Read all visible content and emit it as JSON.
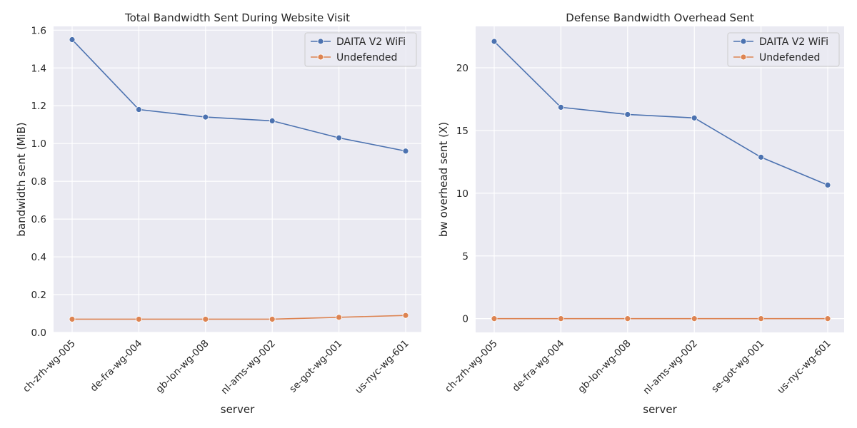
{
  "chart_data": [
    {
      "type": "line",
      "title": "Total Bandwidth Sent During Website Visit",
      "xlabel": "server",
      "ylabel": "bandwidth sent (MiB)",
      "categories": [
        "ch-zrh-wg-005",
        "de-fra-wg-004",
        "gb-lon-wg-008",
        "nl-ams-wg-002",
        "se-got-wg-001",
        "us-nyc-wg-601"
      ],
      "ylim": [
        0,
        1.62
      ],
      "yticks": [
        0.0,
        0.2,
        0.4,
        0.6,
        0.8,
        1.0,
        1.2,
        1.4,
        1.6
      ],
      "ytick_labels": [
        "0.0",
        "0.2",
        "0.4",
        "0.6",
        "0.8",
        "1.0",
        "1.2",
        "1.4",
        "1.6"
      ],
      "grid": true,
      "legend_position": "top-right",
      "series": [
        {
          "name": "DAITA V2 WiFi",
          "color": "#4c72b0",
          "values": [
            1.55,
            1.18,
            1.14,
            1.12,
            1.03,
            0.96
          ]
        },
        {
          "name": "Undefended",
          "color": "#dd8452",
          "values": [
            0.07,
            0.07,
            0.07,
            0.07,
            0.08,
            0.09
          ]
        }
      ]
    },
    {
      "type": "line",
      "title": "Defense Bandwidth Overhead Sent",
      "xlabel": "server",
      "ylabel": "bw overhead sent (X)",
      "categories": [
        "ch-zrh-wg-005",
        "de-fra-wg-004",
        "gb-lon-wg-008",
        "nl-ams-wg-002",
        "se-got-wg-001",
        "us-nyc-wg-601"
      ],
      "ylim": [
        -1.1,
        23.3
      ],
      "yticks": [
        0,
        5,
        10,
        15,
        20
      ],
      "ytick_labels": [
        "0",
        "5",
        "10",
        "15",
        "20"
      ],
      "grid": true,
      "legend_position": "top-right",
      "series": [
        {
          "name": "DAITA V2 WiFi",
          "color": "#4c72b0",
          "values": [
            22.1,
            16.85,
            16.28,
            16.0,
            12.87,
            10.65
          ]
        },
        {
          "name": "Undefended",
          "color": "#dd8452",
          "values": [
            0.0,
            0.0,
            0.0,
            0.0,
            0.0,
            0.0
          ]
        }
      ]
    }
  ]
}
